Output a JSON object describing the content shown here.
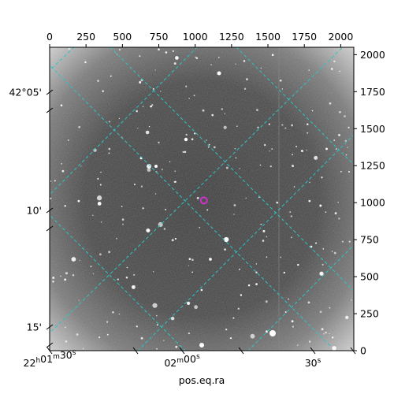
{
  "chart_data": {
    "type": "image",
    "xlabel": "pos.eq.ra",
    "ylabel": "",
    "pixel_axes": {
      "x_ticks": [
        0,
        250,
        500,
        750,
        1000,
        1250,
        1500,
        1750,
        2000
      ],
      "y_ticks": [
        0,
        250,
        500,
        750,
        1000,
        1250,
        1500,
        1750,
        2000
      ],
      "xlim": [
        0,
        2090
      ],
      "ylim": [
        0,
        2050
      ]
    },
    "world_axes": {
      "ra_ticks": [
        {
          "h": "22",
          "m": "01",
          "s": "30"
        },
        {
          "h": "",
          "m": "02",
          "s": "00"
        },
        {
          "h": "",
          "m": "",
          "s": "30"
        }
      ],
      "dec_ticks": [
        "42°05'",
        "10'",
        "15'"
      ]
    },
    "grid": true,
    "grid_color": "#2ec4c4",
    "marker": {
      "shape": "circle",
      "color": "#cc33cc",
      "x": 1060,
      "y": 1015
    }
  }
}
